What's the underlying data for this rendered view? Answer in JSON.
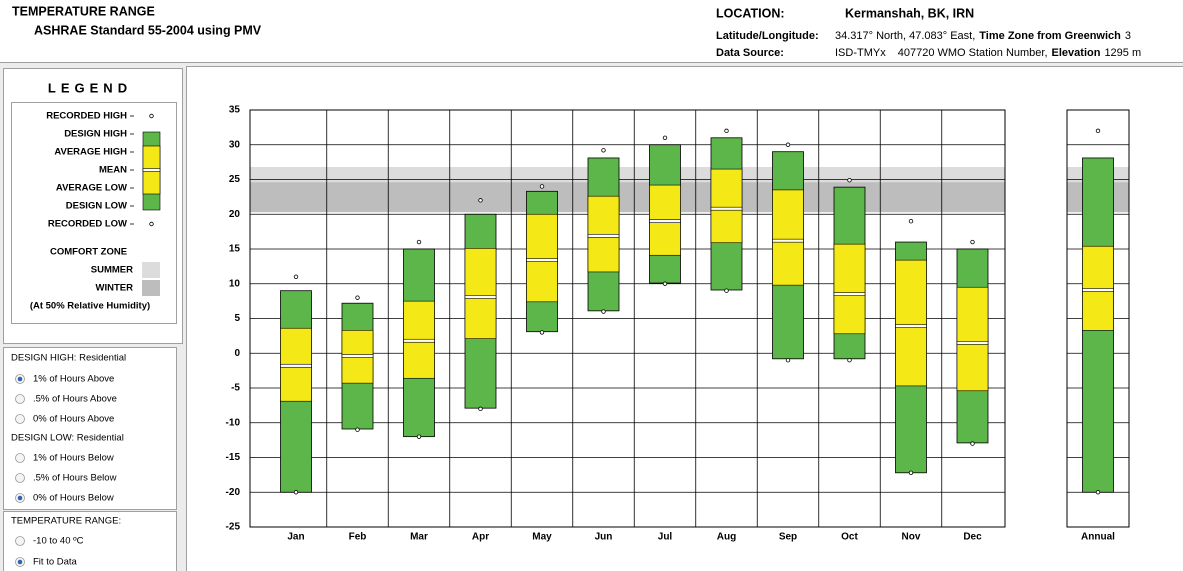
{
  "header": {
    "title": "TEMPERATURE RANGE",
    "subtitle": "ASHRAE Standard 55-2004 using PMV",
    "location_label": "LOCATION:",
    "location": "Kermanshah, BK, IRN",
    "latlon_label": "Latitude/Longitude:",
    "latlon": "34.317° North, 47.083° East,",
    "timezone_label": "Time Zone from Greenwich",
    "timezone": "3",
    "source_label": "Data Source:",
    "source": "ISD-TMYx",
    "station": "407720 WMO Station Number,",
    "elevation_label": "Elevation",
    "elevation": "1295 m"
  },
  "legend": {
    "title": "LEGEND"
  },
  "options": [
    {
      "title": "DESIGN HIGH:  Residential",
      "items": [
        {
          "label": "1% of Hours Above",
          "checked": true
        },
        {
          "label": ".5% of Hours Above",
          "checked": false
        },
        {
          "label": "0% of Hours Above",
          "checked": false
        }
      ]
    },
    {
      "title": "DESIGN LOW:  Residential",
      "items": [
        {
          "label": "1% of Hours Below",
          "checked": false
        },
        {
          "label": ".5% of Hours Below",
          "checked": false
        },
        {
          "label": "0% of Hours Below",
          "checked": true
        }
      ]
    },
    {
      "title": "TEMPERATURE RANGE:",
      "items": [
        {
          "label": "-10 to 40 ºC",
          "checked": false
        },
        {
          "label": "Fit to Data",
          "checked": true
        }
      ]
    }
  ],
  "chart_data": {
    "type": "range",
    "categories": [
      "Jan",
      "Feb",
      "Mar",
      "Apr",
      "May",
      "Jun",
      "Jul",
      "Aug",
      "Sep",
      "Oct",
      "Nov",
      "Dec",
      "Annual"
    ],
    "series": [
      {
        "name": "RECORDED HIGH",
        "color": "#000000",
        "values": [
          11,
          8,
          16,
          22,
          24,
          29.2,
          31,
          32,
          30,
          24.9,
          19,
          16,
          32
        ]
      },
      {
        "name": "DESIGN HIGH",
        "color": "#5db64a",
        "values": [
          9,
          7.2,
          15,
          20,
          23.3,
          28.1,
          30,
          31,
          29,
          23.9,
          16,
          15,
          28.1
        ]
      },
      {
        "name": "AVERAGE HIGH",
        "color": "#f4e816",
        "values": [
          3.6,
          3.3,
          7.5,
          15.1,
          20,
          22.6,
          24.2,
          26.5,
          23.5,
          15.7,
          13.4,
          9.5,
          15.4
        ]
      },
      {
        "name": "MEAN",
        "color": "#ffffff",
        "values": [
          -1.8,
          -0.4,
          1.8,
          8.1,
          13.4,
          16.9,
          19,
          20.8,
          16.2,
          8.5,
          3.9,
          1.5,
          9.1
        ]
      },
      {
        "name": "AVERAGE LOW",
        "color": "#f4e816",
        "values": [
          -6.9,
          -4.3,
          -3.6,
          2.1,
          7.4,
          11.7,
          14.1,
          15.9,
          9.8,
          2.8,
          -4.7,
          -5.4,
          3.3
        ]
      },
      {
        "name": "DESIGN LOW",
        "color": "#5db64a",
        "values": [
          -20,
          -10.9,
          -12,
          -7.9,
          3.1,
          6.1,
          10.1,
          9.1,
          -0.8,
          -0.8,
          -17.2,
          -12.9,
          -20
        ]
      },
      {
        "name": "RECORDED LOW",
        "color": "#000000",
        "values": [
          -20,
          -11,
          -12,
          -8,
          3,
          6,
          10,
          9,
          -1,
          -1,
          -17.2,
          -13,
          -20
        ]
      }
    ],
    "comfort_zone_title": "COMFORT ZONE",
    "comfort_zone_note": "(At 50% Relative Humidity)",
    "comfort_zones": [
      {
        "name": "SUMMER",
        "range": [
          20.3,
          26.8
        ],
        "color": "#dcdcdc"
      },
      {
        "name": "WINTER",
        "range": [
          20.3,
          24.6
        ],
        "color": "#bdbdbd"
      }
    ],
    "ylim": [
      -25,
      35
    ],
    "yticks": [
      -25,
      -20,
      -15,
      -10,
      -5,
      0,
      5,
      10,
      15,
      20,
      25,
      30,
      35
    ],
    "grid": true
  }
}
